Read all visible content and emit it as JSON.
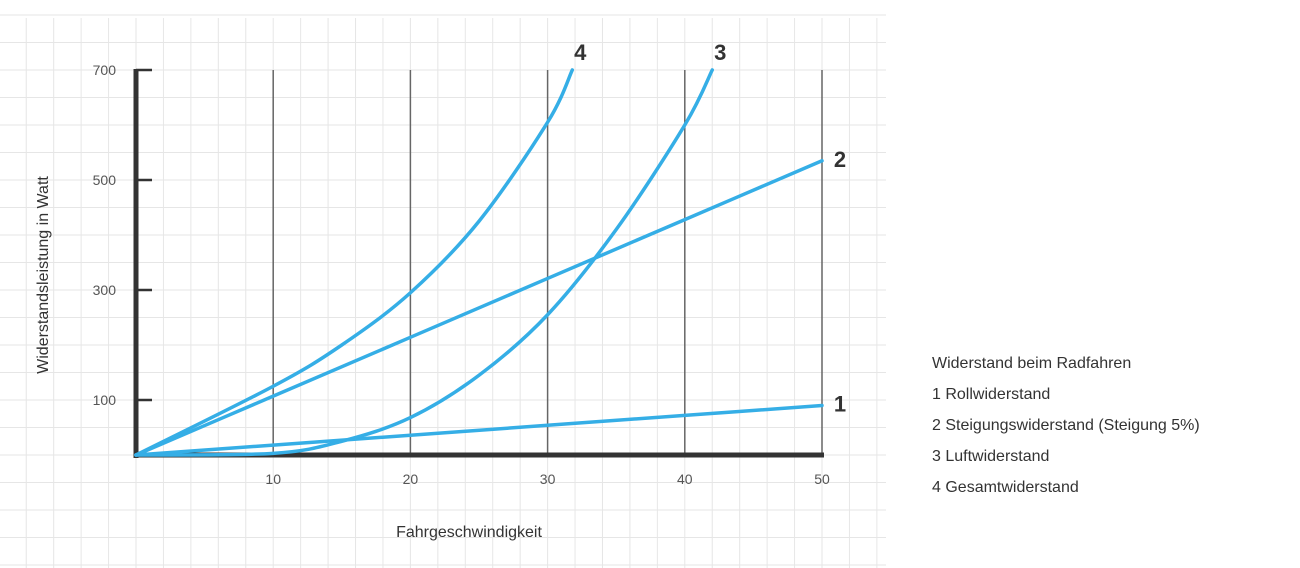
{
  "chart_data": {
    "type": "line",
    "title": "",
    "xlabel": "Fahrgeschwindigkeit",
    "ylabel": "Widerstandsleistung in Watt",
    "xlim": [
      0,
      50
    ],
    "ylim": [
      0,
      700
    ],
    "x_ticks": [
      10,
      20,
      30,
      40,
      50
    ],
    "y_ticks": [
      100,
      300,
      500,
      700
    ],
    "grid": true,
    "line_color": "#35aee6",
    "series": [
      {
        "label": "1",
        "points": [
          [
            0,
            0
          ],
          [
            10,
            18
          ],
          [
            20,
            36
          ],
          [
            30,
            54
          ],
          [
            40,
            72
          ],
          [
            50,
            90
          ]
        ]
      },
      {
        "label": "2",
        "points": [
          [
            0,
            0
          ],
          [
            10,
            107
          ],
          [
            20,
            214
          ],
          [
            30,
            321
          ],
          [
            40,
            428
          ],
          [
            50,
            535
          ]
        ]
      },
      {
        "label": "3",
        "points": [
          [
            0,
            0
          ],
          [
            10,
            3
          ],
          [
            15,
            25
          ],
          [
            20,
            68
          ],
          [
            25,
            145
          ],
          [
            30,
            255
          ],
          [
            35,
            410
          ],
          [
            40,
            600
          ],
          [
            42,
            700
          ]
        ]
      },
      {
        "label": "4",
        "points": [
          [
            0,
            0
          ],
          [
            10,
            125
          ],
          [
            15,
            200
          ],
          [
            20,
            295
          ],
          [
            25,
            425
          ],
          [
            30,
            605
          ],
          [
            31.8,
            700
          ]
        ]
      }
    ],
    "legend": {
      "position": "right",
      "title": "Widerstand beim Radfahren",
      "entries": [
        "1 Rollwiderstand",
        "2 Steigungswiderstand (Steigung 5%)",
        "3 Luftwiderstand",
        "4 Gesamtwiderstand"
      ]
    }
  }
}
